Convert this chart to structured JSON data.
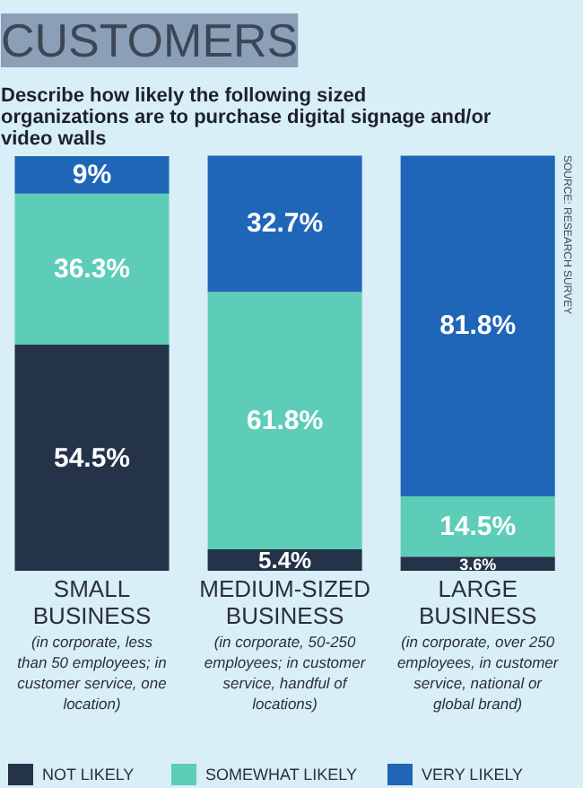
{
  "chart_data": {
    "type": "bar",
    "stacked": true,
    "title": "CUSTOMERS",
    "subtitle": "Describe how likely the following sized organizations are to purchase digital signage and/or video walls",
    "categories": [
      "SMALL BUSINESS",
      "MEDIUM-SIZED BUSINESS",
      "LARGE BUSINESS"
    ],
    "series": [
      {
        "name": "NOT LIKELY",
        "color": "#253349",
        "values": [
          54.5,
          5.4,
          3.6
        ],
        "value_labels": [
          "54.5%",
          "5.4%",
          "3.6%"
        ]
      },
      {
        "name": "SOMEWHAT LIKELY",
        "color": "#5ecdb8",
        "values": [
          36.3,
          61.8,
          14.5
        ],
        "value_labels": [
          "36.3%",
          "61.8%",
          "14.5%"
        ]
      },
      {
        "name": "VERY LIKELY",
        "color": "#1f66b8",
        "values": [
          9,
          32.7,
          81.8
        ],
        "value_labels": [
          "9%",
          "32.7%",
          "81.8%"
        ]
      }
    ],
    "ylim": [
      0,
      100
    ],
    "tick_labels": "x",
    "legend": "bottom",
    "annotations": [
      "(in corporate, less than 50 employees; in customer service, one location)",
      "(in corporate, 50-250 employees; in customer service, handful of locations)",
      "(in corporate, over 250 employees, in customer service, national or global brand)",
      "SOURCE: RESEARCH SURVEY"
    ]
  }
}
